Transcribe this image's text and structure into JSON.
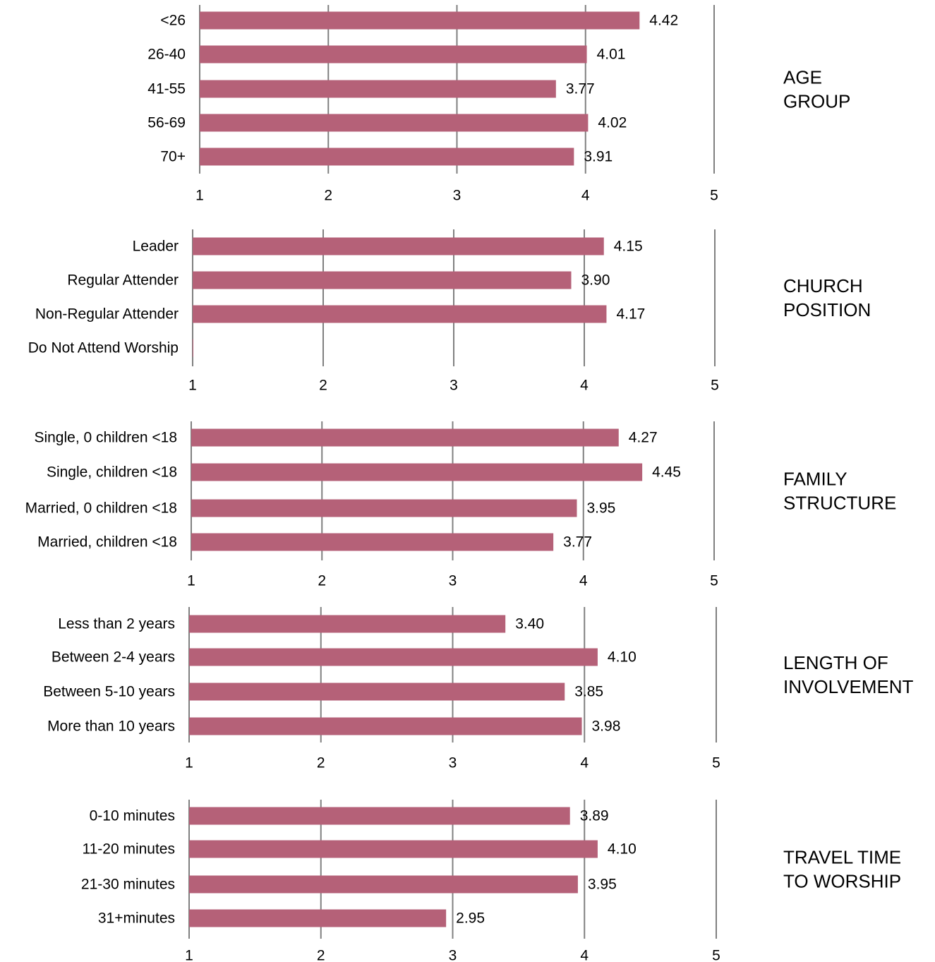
{
  "chart_data": [
    {
      "type": "bar",
      "orientation": "horizontal",
      "title": "AGE GROUP",
      "categories": [
        "<26",
        "26-40",
        "41-55",
        "56-69",
        "70+"
      ],
      "values": [
        4.42,
        4.01,
        3.77,
        4.02,
        3.91
      ],
      "value_labels": [
        "4.42",
        "4.01",
        "3.77",
        "4.02",
        "3.91"
      ],
      "xlim": [
        1,
        5
      ],
      "xticks": [
        "1",
        "2",
        "3",
        "4",
        "5"
      ],
      "grid": "vertical",
      "bar_color": "#b56178"
    },
    {
      "type": "bar",
      "orientation": "horizontal",
      "title": "CHURCH POSITION",
      "categories": [
        "Leader",
        "Regular Attender",
        "Non-Regular Attender",
        "Do Not Attend Worship"
      ],
      "values": [
        4.15,
        3.9,
        4.17,
        null
      ],
      "value_labels": [
        "4.15",
        "3.90",
        "4.17",
        ""
      ],
      "xlim": [
        1,
        5
      ],
      "xticks": [
        "1",
        "2",
        "3",
        "4",
        "5"
      ],
      "grid": "vertical",
      "bar_color": "#b56178"
    },
    {
      "type": "bar",
      "orientation": "horizontal",
      "title": "FAMILY STRUCTURE",
      "categories": [
        "Single, 0 children <18",
        "Single, children <18",
        "Married, 0 children <18",
        "Married, children <18"
      ],
      "values": [
        4.27,
        4.45,
        3.95,
        3.77
      ],
      "value_labels": [
        "4.27",
        "4.45",
        "3.95",
        "3.77"
      ],
      "xlim": [
        1,
        5
      ],
      "xticks": [
        "1",
        "2",
        "3",
        "4",
        "5"
      ],
      "grid": "vertical",
      "bar_color": "#b56178"
    },
    {
      "type": "bar",
      "orientation": "horizontal",
      "title": "LENGTH OF INVOLVEMENT",
      "categories": [
        "Less than 2 years",
        "Between 2-4 years",
        "Between 5-10 years",
        "More than 10 years"
      ],
      "values": [
        3.4,
        4.1,
        3.85,
        3.98
      ],
      "value_labels": [
        "3.40",
        "4.10",
        "3.85",
        "3.98"
      ],
      "xlim": [
        1,
        5
      ],
      "xticks": [
        "1",
        "2",
        "3",
        "4",
        "5"
      ],
      "grid": "vertical",
      "bar_color": "#b56178"
    },
    {
      "type": "bar",
      "orientation": "horizontal",
      "title": "TRAVEL TIME TO WORSHIP",
      "categories": [
        "0-10 minutes",
        "11-20 minutes",
        "21-30 minutes",
        "31+minutes"
      ],
      "values": [
        3.89,
        4.1,
        3.95,
        2.95
      ],
      "value_labels": [
        "3.89",
        "4.10",
        "3.95",
        "2.95"
      ],
      "xlim": [
        1,
        5
      ],
      "xticks": [
        "1",
        "2",
        "3",
        "4",
        "5"
      ],
      "grid": "vertical",
      "bar_color": "#b56178"
    }
  ],
  "titles": [
    [
      "AGE",
      "GROUP"
    ],
    [
      "CHURCH",
      "POSITION"
    ],
    [
      "FAMILY",
      "STRUCTURE"
    ],
    [
      "LENGTH OF",
      "INVOLVEMENT"
    ],
    [
      "TRAVEL TIME",
      "TO WORSHIP"
    ]
  ],
  "colors": {
    "bar": "#b56178",
    "grid": "#808080"
  }
}
